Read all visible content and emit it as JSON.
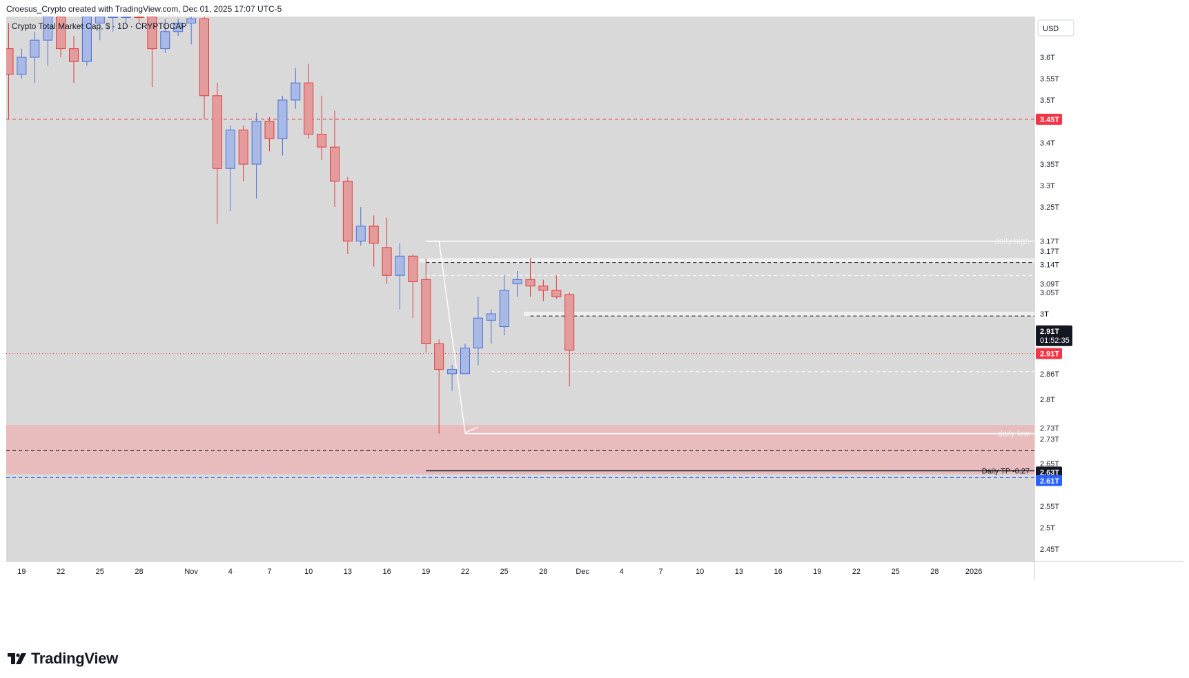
{
  "header": {
    "attribution": "Croesus_Crypto created with TradingView.com, Dec 01, 2025 17:07 UTC-5"
  },
  "symbol": {
    "label": "Crypto Total Market Cap, $ · 1D · CRYPTOCAP"
  },
  "currency_button": {
    "label": "USD"
  },
  "footer": {
    "brand": "TradingView"
  },
  "colors": {
    "chart_bg": "#d9d9d9",
    "up_body": "#a9b9e6",
    "up_border": "#4d6fd6",
    "down_body": "#e39b9b",
    "down_border": "#e23a3a",
    "resistance": "#e53935",
    "support_zone": "#e8bcbc",
    "blue_line": "#2962ff"
  },
  "chart_data": {
    "type": "candlestick",
    "title": "Crypto Total Market Cap, $ · 1D · CRYPTOCAP",
    "ylim": [
      2.4,
      3.68
    ],
    "yticks": [
      {
        "v": 3.6,
        "label": "3.6T"
      },
      {
        "v": 3.55,
        "label": "3.55T"
      },
      {
        "v": 3.5,
        "label": "3.5T"
      },
      {
        "v": 3.4,
        "label": "3.4T"
      },
      {
        "v": 3.35,
        "label": "3.35T"
      },
      {
        "v": 3.3,
        "label": "3.3T"
      },
      {
        "v": 3.25,
        "label": "3.25T"
      },
      {
        "v": 3.05,
        "label": "3.05T"
      },
      {
        "v": 3.0,
        "label": "3T"
      },
      {
        "v": 2.8,
        "label": "2.8T"
      },
      {
        "v": 2.65,
        "label": "2.65T"
      },
      {
        "v": 2.55,
        "label": "2.55T"
      },
      {
        "v": 2.5,
        "label": "2.5T"
      },
      {
        "v": 2.45,
        "label": "2.45T"
      }
    ],
    "price_tags": [
      {
        "v": 3.455,
        "label": "3.45T",
        "bg": "#f23645",
        "fg": "#ffffff"
      },
      {
        "v": 3.17,
        "label": "3.17T",
        "bg": "#ffffff",
        "fg": "#131722"
      },
      {
        "v": 3.147,
        "label": "3.17T",
        "bg": "#ffffff",
        "fg": "#131722"
      },
      {
        "v": 3.115,
        "label": "3.14T",
        "bg": "#ffffff",
        "fg": "#131722"
      },
      {
        "v": 3.07,
        "label": "3.09T",
        "bg": "#ffffff",
        "fg": "#131722"
      },
      {
        "v": 2.86,
        "label": "2.86T",
        "bg": "#ffffff",
        "fg": "#131722"
      },
      {
        "v": 2.733,
        "label": "2.73T",
        "bg": "#ffffff",
        "fg": "#131722"
      },
      {
        "v": 2.707,
        "label": "2.73T",
        "bg": "#ffffff",
        "fg": "#131722"
      },
      {
        "v": 2.63,
        "label": "2.63T",
        "bg": "#131722",
        "fg": "#ffffff"
      },
      {
        "v": 2.61,
        "label": "2.61T",
        "bg": "#2962ff",
        "fg": "#ffffff"
      },
      {
        "v": 2.907,
        "label": "2.91T",
        "bg": "#f23645",
        "fg": "#ffffff"
      }
    ],
    "last_price": {
      "v": 2.96,
      "label": "2.91T",
      "countdown": "01:52:35"
    },
    "xticks": [
      {
        "i": 1,
        "label": "19"
      },
      {
        "i": 4,
        "label": "22"
      },
      {
        "i": 7,
        "label": "25"
      },
      {
        "i": 10,
        "label": "28"
      },
      {
        "i": 14,
        "label": "Nov"
      },
      {
        "i": 17,
        "label": "4"
      },
      {
        "i": 20,
        "label": "7"
      },
      {
        "i": 23,
        "label": "10"
      },
      {
        "i": 26,
        "label": "13"
      },
      {
        "i": 29,
        "label": "16"
      },
      {
        "i": 32,
        "label": "19"
      },
      {
        "i": 35,
        "label": "22"
      },
      {
        "i": 38,
        "label": "25"
      },
      {
        "i": 41,
        "label": "28"
      },
      {
        "i": 44,
        "label": "Dec"
      },
      {
        "i": 47,
        "label": "4"
      },
      {
        "i": 50,
        "label": "7"
      },
      {
        "i": 53,
        "label": "10"
      },
      {
        "i": 56,
        "label": "13"
      },
      {
        "i": 59,
        "label": "16"
      },
      {
        "i": 62,
        "label": "19"
      },
      {
        "i": 65,
        "label": "22"
      },
      {
        "i": 68,
        "label": "25"
      },
      {
        "i": 71,
        "label": "28"
      },
      {
        "i": 74,
        "label": "2026"
      }
    ],
    "candles": [
      {
        "o": 3.62,
        "h": 3.68,
        "l": 3.455,
        "c": 3.56
      },
      {
        "o": 3.56,
        "h": 3.62,
        "l": 3.55,
        "c": 3.6
      },
      {
        "o": 3.6,
        "h": 3.66,
        "l": 3.54,
        "c": 3.64
      },
      {
        "o": 3.64,
        "h": 3.7,
        "l": 3.58,
        "c": 3.7
      },
      {
        "o": 3.7,
        "h": 3.72,
        "l": 3.6,
        "c": 3.62
      },
      {
        "o": 3.62,
        "h": 3.65,
        "l": 3.54,
        "c": 3.59
      },
      {
        "o": 3.59,
        "h": 3.7,
        "l": 3.58,
        "c": 3.7
      },
      {
        "o": 3.68,
        "h": 3.72,
        "l": 3.64,
        "c": 3.72
      },
      {
        "o": 3.7,
        "h": 3.72,
        "l": 3.66,
        "c": 3.72
      },
      {
        "o": 3.72,
        "h": 3.72,
        "l": 3.68,
        "c": 3.72
      },
      {
        "o": 3.71,
        "h": 3.72,
        "l": 3.68,
        "c": 3.7
      },
      {
        "o": 3.7,
        "h": 3.72,
        "l": 3.53,
        "c": 3.62
      },
      {
        "o": 3.62,
        "h": 3.69,
        "l": 3.61,
        "c": 3.66
      },
      {
        "o": 3.66,
        "h": 3.69,
        "l": 3.65,
        "c": 3.68
      },
      {
        "o": 3.68,
        "h": 3.7,
        "l": 3.63,
        "c": 3.69
      },
      {
        "o": 3.69,
        "h": 3.7,
        "l": 3.455,
        "c": 3.51
      },
      {
        "o": 3.51,
        "h": 3.54,
        "l": 3.21,
        "c": 3.34
      },
      {
        "o": 3.34,
        "h": 3.44,
        "l": 3.24,
        "c": 3.43
      },
      {
        "o": 3.43,
        "h": 3.44,
        "l": 3.31,
        "c": 3.35
      },
      {
        "o": 3.35,
        "h": 3.47,
        "l": 3.27,
        "c": 3.45
      },
      {
        "o": 3.45,
        "h": 3.46,
        "l": 3.38,
        "c": 3.41
      },
      {
        "o": 3.41,
        "h": 3.51,
        "l": 3.37,
        "c": 3.5
      },
      {
        "o": 3.5,
        "h": 3.575,
        "l": 3.48,
        "c": 3.54
      },
      {
        "o": 3.54,
        "h": 3.585,
        "l": 3.41,
        "c": 3.42
      },
      {
        "o": 3.42,
        "h": 3.51,
        "l": 3.36,
        "c": 3.39
      },
      {
        "o": 3.39,
        "h": 3.475,
        "l": 3.25,
        "c": 3.31
      },
      {
        "o": 3.31,
        "h": 3.32,
        "l": 3.14,
        "c": 3.17
      },
      {
        "o": 3.17,
        "h": 3.25,
        "l": 3.16,
        "c": 3.205
      },
      {
        "o": 3.205,
        "h": 3.23,
        "l": 3.11,
        "c": 3.165
      },
      {
        "o": 3.155,
        "h": 3.225,
        "l": 3.07,
        "c": 3.09
      },
      {
        "o": 3.09,
        "h": 3.165,
        "l": 3.01,
        "c": 3.135
      },
      {
        "o": 3.135,
        "h": 3.14,
        "l": 2.99,
        "c": 3.075
      },
      {
        "o": 3.08,
        "h": 3.13,
        "l": 2.91,
        "c": 2.93
      },
      {
        "o": 2.93,
        "h": 2.94,
        "l": 2.72,
        "c": 2.87
      },
      {
        "o": 2.86,
        "h": 2.88,
        "l": 2.82,
        "c": 2.87
      },
      {
        "o": 2.86,
        "h": 2.93,
        "l": 2.86,
        "c": 2.92
      },
      {
        "o": 2.92,
        "h": 3.04,
        "l": 2.88,
        "c": 2.99
      },
      {
        "o": 2.985,
        "h": 3.01,
        "l": 2.93,
        "c": 3.0
      },
      {
        "o": 2.97,
        "h": 3.09,
        "l": 2.95,
        "c": 3.055
      },
      {
        "o": 3.07,
        "h": 3.1,
        "l": 3.04,
        "c": 3.08
      },
      {
        "o": 3.08,
        "h": 3.13,
        "l": 3.04,
        "c": 3.065
      },
      {
        "o": 3.065,
        "h": 3.08,
        "l": 3.03,
        "c": 3.055
      },
      {
        "o": 3.055,
        "h": 3.09,
        "l": 3.035,
        "c": 3.04
      },
      {
        "o": 3.045,
        "h": 3.05,
        "l": 2.83,
        "c": 2.915
      }
    ],
    "levels": [
      {
        "name": "resistance-3.45",
        "v": 3.455,
        "style": "red-dash"
      },
      {
        "name": "daily-high-line",
        "v": 3.17,
        "style": "white-solid",
        "from": 32
      },
      {
        "name": "dashed-3.12",
        "v": 3.12,
        "style": "black-dash",
        "from": 32
      },
      {
        "name": "dashed-3.09",
        "v": 3.09,
        "style": "white-dash",
        "from": 32
      },
      {
        "name": "dashed-3.0",
        "v": 2.995,
        "style": "black-dash",
        "from": 40
      },
      {
        "name": "dashed-2.86",
        "v": 2.865,
        "style": "white-dash",
        "from": 37
      },
      {
        "name": "daily-low-line",
        "v": 2.72,
        "style": "white-solid",
        "from": 35
      },
      {
        "name": "dashed-2.68",
        "v": 2.68,
        "style": "black-dash",
        "from": 0
      },
      {
        "name": "daily-tp-line",
        "v": 2.633,
        "style": "black-solid",
        "from": 32
      },
      {
        "name": "blue-2.61",
        "v": 2.617,
        "style": "blue-dash",
        "from": 0
      },
      {
        "name": "last-price-dotted",
        "v": 2.907,
        "style": "red-dot",
        "from": 0
      }
    ],
    "zones": [
      {
        "name": "white-band-high",
        "from_v": 3.12,
        "to_v": 3.13,
        "from": 32
      },
      {
        "name": "white-band-3",
        "from_v": 2.995,
        "to_v": 3.005,
        "from": 40
      },
      {
        "name": "support-zone",
        "from_v": 2.625,
        "to_v": 2.74,
        "from": 0
      }
    ],
    "annotations": [
      {
        "name": "daily-high-label",
        "text": "daily high",
        "v": 3.17,
        "color": "#f0f0f0"
      },
      {
        "name": "daily-low-label",
        "text": "daily low",
        "v": 2.72,
        "color": "#f0f0f0"
      },
      {
        "name": "daily-tp-label",
        "text": "Daily TP -0.27",
        "v": 2.633,
        "color": "#131722"
      }
    ]
  }
}
